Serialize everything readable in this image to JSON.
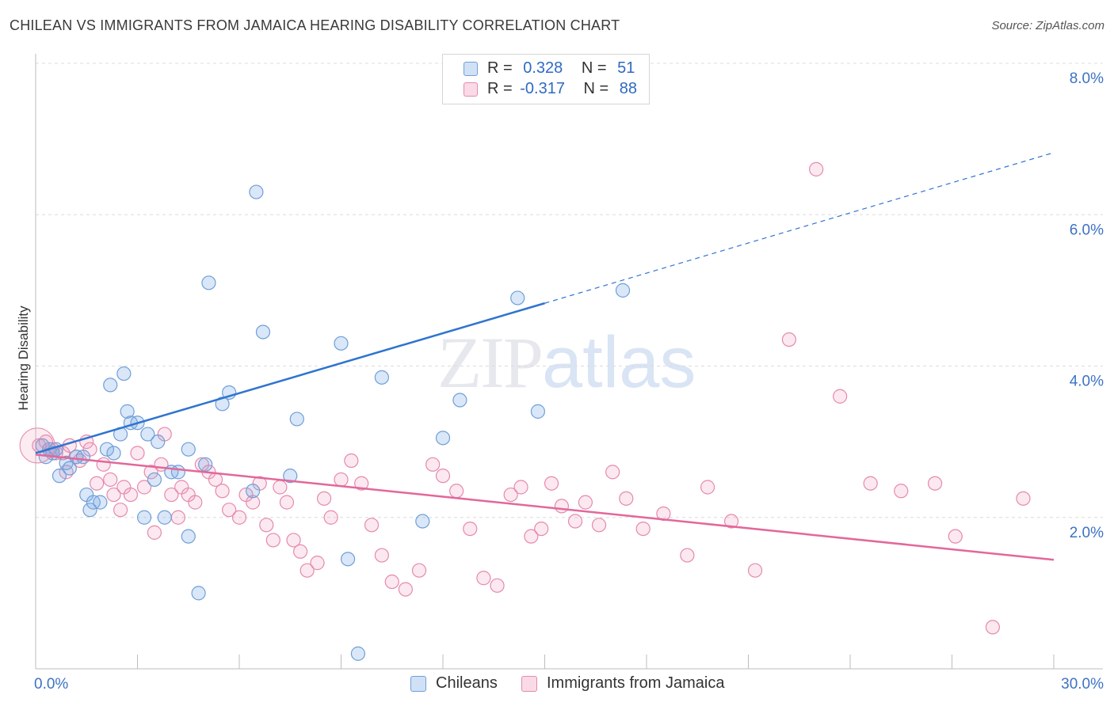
{
  "title": "CHILEAN VS IMMIGRANTS FROM JAMAICA HEARING DISABILITY CORRELATION CHART",
  "source": "Source: ZipAtlas.com",
  "watermark": {
    "zip": "ZIP",
    "atlas": "atlas"
  },
  "legend_stats": [
    {
      "r_label": "R =",
      "r_value": "0.328",
      "n_label": "N =",
      "n_value": "51"
    },
    {
      "r_label": "R =",
      "r_value": "-0.317",
      "n_label": "N =",
      "n_value": "88"
    }
  ],
  "colors": {
    "chileans_fill": "rgba(120,170,230,0.28)",
    "chileans_stroke": "#6f9fd8",
    "jamaica_fill": "rgba(240,150,185,0.22)",
    "jamaica_stroke": "#e58aaa",
    "blue_line": "#2f74d0",
    "pink_line": "#e3679a",
    "axis_label": "#3d72c4"
  },
  "chart_data": {
    "type": "scatter",
    "title": "CHILEAN VS IMMIGRANTS FROM JAMAICA HEARING DISABILITY CORRELATION CHART",
    "xlabel": "",
    "ylabel": "Hearing Disability",
    "xlim": [
      0,
      30
    ],
    "ylim": [
      0,
      8
    ],
    "x_tick_labels": [
      "0.0%",
      "30.0%"
    ],
    "y_ticks": [
      2,
      4,
      6,
      8
    ],
    "y_tick_labels": [
      "2.0%",
      "4.0%",
      "6.0%",
      "8.0%"
    ],
    "grid": true,
    "legend_position": "bottom",
    "series": [
      {
        "name": "Chileans",
        "points": [
          [
            0.2,
            2.95
          ],
          [
            0.3,
            2.8
          ],
          [
            0.4,
            2.9
          ],
          [
            0.5,
            2.85
          ],
          [
            0.6,
            2.9
          ],
          [
            0.7,
            2.55
          ],
          [
            0.9,
            2.72
          ],
          [
            1.0,
            2.65
          ],
          [
            1.2,
            2.8
          ],
          [
            1.4,
            2.8
          ],
          [
            1.5,
            2.3
          ],
          [
            1.6,
            2.1
          ],
          [
            1.7,
            2.2
          ],
          [
            1.9,
            2.2
          ],
          [
            2.1,
            2.9
          ],
          [
            2.3,
            2.85
          ],
          [
            2.6,
            3.9
          ],
          [
            2.8,
            3.25
          ],
          [
            3.2,
            2.0
          ],
          [
            3.5,
            2.5
          ],
          [
            3.8,
            2.0
          ],
          [
            4.0,
            2.6
          ],
          [
            4.5,
            2.9
          ],
          [
            5.0,
            2.7
          ],
          [
            2.2,
            3.75
          ],
          [
            2.5,
            3.1
          ],
          [
            2.7,
            3.4
          ],
          [
            3.0,
            3.25
          ],
          [
            3.3,
            3.1
          ],
          [
            3.6,
            3.0
          ],
          [
            4.2,
            2.6
          ],
          [
            4.5,
            1.75
          ],
          [
            4.8,
            1.0
          ],
          [
            5.1,
            5.1
          ],
          [
            5.5,
            3.5
          ],
          [
            5.7,
            3.65
          ],
          [
            6.4,
            2.35
          ],
          [
            6.5,
            6.3
          ],
          [
            6.7,
            4.45
          ],
          [
            7.5,
            2.55
          ],
          [
            7.7,
            3.3
          ],
          [
            9.0,
            4.3
          ],
          [
            9.2,
            1.45
          ],
          [
            9.5,
            0.2
          ],
          [
            10.2,
            3.85
          ],
          [
            11.4,
            1.95
          ],
          [
            12.0,
            3.05
          ],
          [
            12.5,
            3.55
          ],
          [
            14.2,
            4.9
          ],
          [
            14.8,
            3.4
          ],
          [
            17.3,
            5.0
          ]
        ]
      },
      {
        "name": "Immigrants from Jamaica",
        "points": [
          [
            0.1,
            2.95
          ],
          [
            0.3,
            3.0
          ],
          [
            0.5,
            2.9
          ],
          [
            0.6,
            2.85
          ],
          [
            0.8,
            2.85
          ],
          [
            1.0,
            2.95
          ],
          [
            1.2,
            2.8
          ],
          [
            1.3,
            2.75
          ],
          [
            1.5,
            3.0
          ],
          [
            1.6,
            2.9
          ],
          [
            1.8,
            2.45
          ],
          [
            2.0,
            2.7
          ],
          [
            2.2,
            2.5
          ],
          [
            2.3,
            2.3
          ],
          [
            2.5,
            2.1
          ],
          [
            2.6,
            2.4
          ],
          [
            2.8,
            2.3
          ],
          [
            3.0,
            2.85
          ],
          [
            3.2,
            2.4
          ],
          [
            3.4,
            2.6
          ],
          [
            3.5,
            1.8
          ],
          [
            3.7,
            2.7
          ],
          [
            3.8,
            3.1
          ],
          [
            4.0,
            2.3
          ],
          [
            4.2,
            2.0
          ],
          [
            4.3,
            2.4
          ],
          [
            4.5,
            2.3
          ],
          [
            4.7,
            2.2
          ],
          [
            4.9,
            2.7
          ],
          [
            5.1,
            2.6
          ],
          [
            5.3,
            2.5
          ],
          [
            5.5,
            2.35
          ],
          [
            5.7,
            2.1
          ],
          [
            6.0,
            2.0
          ],
          [
            6.2,
            2.3
          ],
          [
            6.4,
            2.2
          ],
          [
            6.6,
            2.45
          ],
          [
            6.8,
            1.9
          ],
          [
            7.0,
            1.7
          ],
          [
            7.2,
            2.4
          ],
          [
            7.4,
            2.2
          ],
          [
            7.6,
            1.7
          ],
          [
            7.8,
            1.55
          ],
          [
            8.0,
            1.3
          ],
          [
            8.3,
            1.4
          ],
          [
            8.5,
            2.25
          ],
          [
            8.7,
            2.0
          ],
          [
            9.0,
            2.5
          ],
          [
            9.3,
            2.75
          ],
          [
            9.6,
            2.45
          ],
          [
            9.9,
            1.9
          ],
          [
            10.2,
            1.5
          ],
          [
            10.5,
            1.15
          ],
          [
            10.9,
            1.05
          ],
          [
            11.3,
            1.3
          ],
          [
            11.7,
            2.7
          ],
          [
            12.0,
            2.55
          ],
          [
            12.4,
            2.35
          ],
          [
            12.8,
            1.85
          ],
          [
            13.2,
            1.2
          ],
          [
            13.6,
            1.1
          ],
          [
            14.0,
            2.3
          ],
          [
            14.3,
            2.4
          ],
          [
            14.6,
            1.75
          ],
          [
            14.9,
            1.85
          ],
          [
            15.2,
            2.45
          ],
          [
            15.5,
            2.15
          ],
          [
            15.9,
            1.95
          ],
          [
            16.2,
            2.2
          ],
          [
            16.6,
            1.9
          ],
          [
            17.0,
            2.6
          ],
          [
            17.4,
            2.25
          ],
          [
            17.9,
            1.85
          ],
          [
            18.5,
            2.05
          ],
          [
            19.2,
            1.5
          ],
          [
            19.8,
            2.4
          ],
          [
            20.5,
            1.95
          ],
          [
            21.2,
            1.3
          ],
          [
            23.0,
            6.6
          ],
          [
            24.6,
            2.45
          ],
          [
            28.2,
            0.55
          ],
          [
            26.5,
            2.45
          ],
          [
            22.2,
            4.35
          ],
          [
            23.7,
            3.6
          ],
          [
            25.5,
            2.35
          ],
          [
            27.1,
            1.75
          ],
          [
            29.1,
            2.25
          ],
          [
            0.9,
            2.6
          ]
        ]
      }
    ]
  }
}
